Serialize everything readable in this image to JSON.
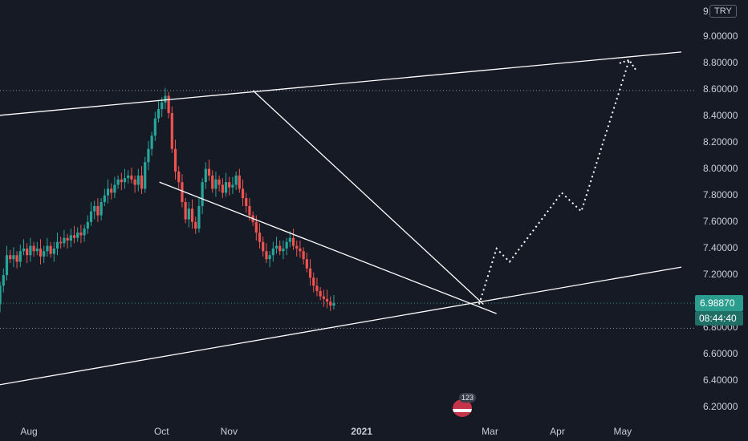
{
  "currency": "TRY",
  "price_label": "6.98870",
  "countdown_label": "08:44:40",
  "event_count": "123",
  "colors": {
    "background": "#161a25",
    "up": "#26a69a",
    "down": "#ef5350",
    "line": "#ffffff",
    "axis_text": "#c9ccd4",
    "price_tag": "#2a9d8f",
    "countdown_tag": "#1f6f66"
  },
  "chart_data": {
    "type": "candlestick",
    "y_axis_labels": [
      "9.0000",
      "9.00000",
      "8.80000",
      "8.60000",
      "8.40000",
      "8.20000",
      "8.00000",
      "7.80000",
      "7.60000",
      "7.40000",
      "7.20000",
      "7.00000",
      "6.80000",
      "6.60000",
      "6.40000",
      "6.20000"
    ],
    "x_axis_labels": [
      "Aug",
      "Oct",
      "Nov",
      "2021",
      "Mar",
      "Apr",
      "May"
    ],
    "x_dates": [
      0,
      61,
      92,
      153,
      212,
      243,
      273
    ],
    "ylim": [
      6.12,
      9.0
    ],
    "xlim": [
      -22,
      300
    ],
    "last_price": 6.9887,
    "horizontal_levels": [
      8.59,
      6.8
    ],
    "closes": [
      6.8,
      6.8,
      6.85,
      6.95,
      6.98,
      7.12,
      7.2,
      7.35,
      7.32,
      7.35,
      7.3,
      7.38,
      7.4,
      7.35,
      7.42,
      7.38,
      7.4,
      7.34,
      7.38,
      7.42,
      7.36,
      7.4,
      7.45,
      7.44,
      7.48,
      7.46,
      7.5,
      7.48,
      7.52,
      7.5,
      7.55,
      7.6,
      7.68,
      7.72,
      7.65,
      7.75,
      7.8,
      7.85,
      7.82,
      7.88,
      7.92,
      7.9,
      7.93,
      7.95,
      7.92,
      7.88,
      7.95,
      7.85,
      8.05,
      8.15,
      8.25,
      8.38,
      8.45,
      8.5,
      8.55,
      8.42,
      8.15,
      7.98,
      7.9,
      7.75,
      7.62,
      7.7,
      7.6,
      7.55,
      7.72,
      7.9,
      8.0,
      7.95,
      7.85,
      7.92,
      7.88,
      7.82,
      7.9,
      7.86,
      7.88,
      7.95,
      7.85,
      7.78,
      7.72,
      7.65,
      7.6,
      7.52,
      7.45,
      7.38,
      7.32,
      7.35,
      7.4,
      7.42,
      7.38,
      7.4,
      7.45,
      7.48,
      7.42,
      7.4,
      7.38,
      7.32,
      7.25,
      7.18,
      7.12,
      7.08,
      7.04,
      7.02,
      7.0,
      6.97,
      6.99
    ],
    "candle_start_day": -21,
    "candle_step_days": 1.55,
    "trendlines": [
      {
        "from": [
          -22,
          8.39
        ],
        "to": [
          300,
          8.88
        ]
      },
      {
        "from": [
          -22,
          6.35
        ],
        "to": [
          300,
          7.26
        ]
      },
      {
        "from": [
          60,
          7.9
        ],
        "to": [
          215,
          6.91
        ]
      },
      {
        "from": [
          103,
          8.59
        ],
        "to": [
          209,
          6.98
        ]
      }
    ],
    "projection": [
      [
        207,
        6.98
      ],
      [
        215,
        7.4
      ],
      [
        221,
        7.3
      ],
      [
        245,
        7.82
      ],
      [
        254,
        7.68
      ],
      [
        276,
        8.82
      ]
    ]
  }
}
